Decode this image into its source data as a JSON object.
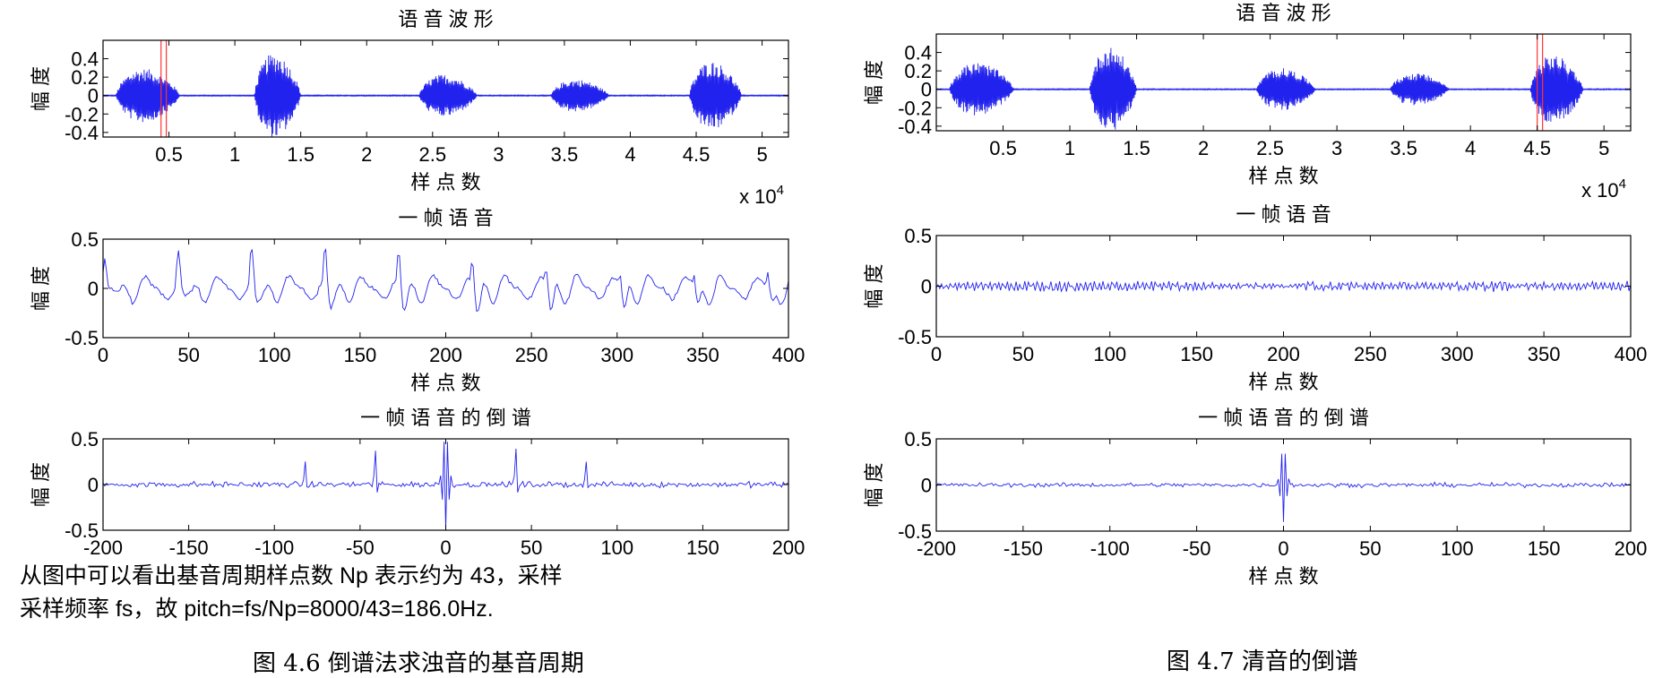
{
  "figure_left": {
    "caption": "图 4.6 倒谱法求浊音的基音周期",
    "text_lines": [
      "从图中可以看出基音周期样点数 Np 表示约为 43，采样",
      "采样频率 fs，故 pitch=fs/Np=8000/43=186.0Hz."
    ]
  },
  "figure_right": {
    "caption": "图 4.7 清音的倒谱"
  },
  "colors": {
    "signal": "#2222ee",
    "marker": "#ff3333",
    "axis": "#000000"
  },
  "chart_data": [
    {
      "id": "L1",
      "type": "line",
      "title": "语 音 波 形",
      "xlabel": "样 点 数",
      "ylabel": "幅 度",
      "xlim": [
        0,
        52000
      ],
      "ylim": [
        -0.45,
        0.6
      ],
      "xticks": [
        5000,
        10000,
        15000,
        20000,
        25000,
        30000,
        35000,
        40000,
        45000,
        50000
      ],
      "xticklabels": [
        "0.5",
        "1",
        "1.5",
        "2",
        "2.5",
        "3",
        "3.5",
        "4",
        "4.5",
        "5"
      ],
      "yticks": [
        -0.4,
        -0.2,
        0,
        0.2,
        0.4
      ],
      "yticklabels": [
        "-0.4",
        "-0.2",
        "0",
        "0.2",
        "0.4"
      ],
      "x_multiplier": "x 10",
      "x_multiplier_exp": "4",
      "kind": "speech",
      "segments": [
        {
          "start": 1000,
          "end": 6500,
          "amp": 0.33
        },
        {
          "start": 11500,
          "end": 15500,
          "amp": 0.52
        },
        {
          "start": 24000,
          "end": 29000,
          "amp": 0.26
        },
        {
          "start": 34000,
          "end": 39000,
          "amp": 0.2
        },
        {
          "start": 44500,
          "end": 49000,
          "amp": 0.42
        }
      ],
      "markers": [
        4400,
        4800
      ]
    },
    {
      "id": "L2",
      "type": "line",
      "title": "一 帧 语 音",
      "xlabel": "样 点 数",
      "ylabel": "幅 度",
      "xlim": [
        0,
        400
      ],
      "ylim": [
        -0.5,
        0.5
      ],
      "xticks": [
        0,
        50,
        100,
        150,
        200,
        250,
        300,
        350,
        400
      ],
      "xticklabels": [
        "0",
        "50",
        "100",
        "150",
        "200",
        "250",
        "300",
        "350",
        "400"
      ],
      "yticks": [
        -0.5,
        0,
        0.5
      ],
      "yticklabels": [
        "-0.5",
        "0",
        "0.5"
      ],
      "kind": "voiced",
      "period": 43,
      "amp": 0.28
    },
    {
      "id": "L3",
      "type": "line",
      "title": "一 帧 语 音 的 倒 谱",
      "xlabel": "",
      "ylabel": "幅 度",
      "xlim": [
        -200,
        200
      ],
      "ylim": [
        -0.5,
        0.5
      ],
      "xticks": [
        -200,
        -150,
        -100,
        -50,
        0,
        50,
        100,
        150,
        200
      ],
      "xticklabels": [
        "-200",
        "-150",
        "-100",
        "-50",
        "0",
        "50",
        "100",
        "150",
        "200"
      ],
      "yticks": [
        -0.5,
        0,
        0.5
      ],
      "yticklabels": [
        "-0.5",
        "0",
        "0.5"
      ],
      "kind": "cepstrum",
      "peaks": [
        {
          "x": -82,
          "y": 0.25
        },
        {
          "x": -41,
          "y": 0.38
        },
        {
          "x": 41,
          "y": 0.38
        },
        {
          "x": 82,
          "y": 0.25
        }
      ],
      "center_peak": 0.55,
      "noise": 0.03
    },
    {
      "id": "R1",
      "type": "line",
      "title": "语 音 波 形",
      "xlabel": "样 点 数",
      "ylabel": "幅 度",
      "xlim": [
        0,
        52000
      ],
      "ylim": [
        -0.45,
        0.6
      ],
      "xticks": [
        5000,
        10000,
        15000,
        20000,
        25000,
        30000,
        35000,
        40000,
        45000,
        50000
      ],
      "xticklabels": [
        "0.5",
        "1",
        "1.5",
        "2",
        "2.5",
        "3",
        "3.5",
        "4",
        "4.5",
        "5"
      ],
      "yticks": [
        -0.4,
        -0.2,
        0,
        0.2,
        0.4
      ],
      "yticklabels": [
        "-0.4",
        "-0.2",
        "0",
        "0.2",
        "0.4"
      ],
      "x_multiplier": "x 10",
      "x_multiplier_exp": "4",
      "kind": "speech",
      "segments": [
        {
          "start": 1000,
          "end": 6500,
          "amp": 0.33
        },
        {
          "start": 11500,
          "end": 15500,
          "amp": 0.52
        },
        {
          "start": 24000,
          "end": 29000,
          "amp": 0.26
        },
        {
          "start": 34000,
          "end": 39000,
          "amp": 0.2
        },
        {
          "start": 44500,
          "end": 49000,
          "amp": 0.42
        }
      ],
      "markers": [
        45000,
        45400
      ]
    },
    {
      "id": "R2",
      "type": "line",
      "title": "一 帧 语 音",
      "xlabel": "样 点 数",
      "ylabel": "幅 度",
      "xlim": [
        0,
        400
      ],
      "ylim": [
        -0.5,
        0.5
      ],
      "xticks": [
        0,
        50,
        100,
        150,
        200,
        250,
        300,
        350,
        400
      ],
      "xticklabels": [
        "0",
        "50",
        "100",
        "150",
        "200",
        "250",
        "300",
        "350",
        "400"
      ],
      "yticks": [
        -0.5,
        0,
        0.5
      ],
      "yticklabels": [
        "-0.5",
        "0",
        "0.5"
      ],
      "kind": "unvoiced",
      "amp": 0.05
    },
    {
      "id": "R3",
      "type": "line",
      "title": "一 帧 语 音 的 倒 谱",
      "xlabel": "样 点 数",
      "ylabel": "幅 度",
      "xlim": [
        -200,
        200
      ],
      "ylim": [
        -0.5,
        0.5
      ],
      "xticks": [
        -200,
        -150,
        -100,
        -50,
        0,
        50,
        100,
        150,
        200
      ],
      "xticklabels": [
        "-200",
        "-150",
        "-100",
        "-50",
        "0",
        "50",
        "100",
        "150",
        "200"
      ],
      "yticks": [
        -0.5,
        0,
        0.5
      ],
      "yticklabels": [
        "-0.5",
        "0",
        "0.5"
      ],
      "kind": "cepstrum",
      "peaks": [],
      "center_peak": 0.4,
      "noise": 0.022
    }
  ]
}
